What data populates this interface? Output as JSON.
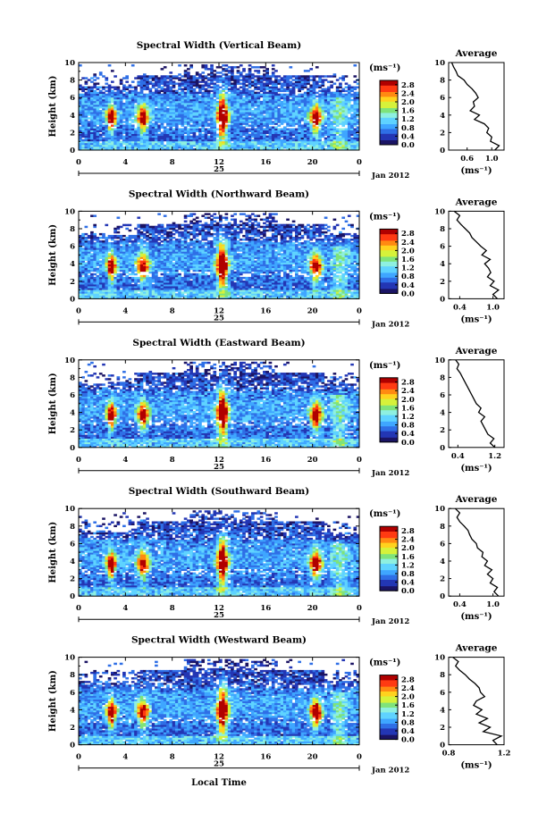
{
  "figure": {
    "xlabel": "Local Time",
    "colorscale": [
      "#1b1464",
      "#2336b4",
      "#2f6fe6",
      "#3fa6ff",
      "#5fd3ff",
      "#8ef0e0",
      "#7fe37a",
      "#d6f23a",
      "#ffd21e",
      "#ff8a12",
      "#ff3a12",
      "#b00000"
    ]
  },
  "chart_data": [
    {
      "type": "heatmap",
      "title": "Spectral Width (Vertical Beam)",
      "ylabel": "Height (km)",
      "x_ticks": [
        "0",
        "4",
        "8",
        "12",
        "16",
        "20",
        "0"
      ],
      "xlim": [
        0,
        24
      ],
      "ylim": [
        0,
        10
      ],
      "y_ticks": [
        "0",
        "2",
        "4",
        "6",
        "8",
        "10"
      ],
      "day_label": "25",
      "date_label": "Jan 2012",
      "colorbar": {
        "unit": "(ms⁻¹)",
        "ticks": [
          "0.0",
          "0.4",
          "0.8",
          "1.2",
          "1.6",
          "2.0",
          "2.4",
          "2.8"
        ],
        "range": [
          0,
          3.0
        ]
      },
      "profile": {
        "title": "Average",
        "xlabel": "(ms⁻¹)",
        "x_ticks": [
          "0.6",
          "1.0"
        ],
        "xlim": [
          0.3,
          1.2
        ],
        "height": [
          0,
          0.5,
          1,
          1.5,
          2,
          2.5,
          3,
          3.5,
          4,
          4.5,
          5,
          5.5,
          6,
          6.5,
          7,
          7.5,
          8,
          8.5,
          9,
          9.5,
          10
        ],
        "value": [
          1.05,
          1.12,
          0.98,
          1.0,
          0.92,
          0.95,
          0.88,
          0.72,
          0.8,
          0.65,
          0.72,
          0.7,
          0.78,
          0.74,
          0.68,
          0.6,
          0.55,
          0.45,
          0.42,
          0.38,
          0.35
        ]
      }
    },
    {
      "type": "heatmap",
      "title": "Spectral Width (Northward Beam)",
      "ylabel": "Height (km)",
      "x_ticks": [
        "0",
        "4",
        "8",
        "12",
        "16",
        "20",
        "0"
      ],
      "xlim": [
        0,
        24
      ],
      "ylim": [
        0,
        10
      ],
      "y_ticks": [
        "0",
        "2",
        "4",
        "6",
        "8",
        "10"
      ],
      "day_label": "25",
      "date_label": "Jan 2012",
      "colorbar": {
        "unit": "(ms⁻¹)",
        "ticks": [
          "0.0",
          "0.4",
          "0.8",
          "1.2",
          "1.6",
          "2.0",
          "2.4",
          "2.8"
        ],
        "range": [
          0,
          3.0
        ]
      },
      "profile": {
        "title": "Average",
        "xlabel": "(ms⁻¹)",
        "x_ticks": [
          "0.4",
          "1.0"
        ],
        "xlim": [
          0.2,
          1.2
        ],
        "height": [
          0,
          0.5,
          1,
          1.5,
          2,
          2.5,
          3,
          3.5,
          4,
          4.5,
          5,
          5.5,
          6,
          6.5,
          7,
          7.5,
          8,
          8.5,
          9,
          9.5,
          10
        ],
        "value": [
          1.08,
          1.0,
          1.1,
          0.95,
          1.02,
          0.9,
          0.96,
          0.92,
          0.85,
          0.95,
          0.8,
          0.88,
          0.78,
          0.7,
          0.62,
          0.58,
          0.5,
          0.42,
          0.35,
          0.4,
          0.3
        ]
      }
    },
    {
      "type": "heatmap",
      "title": "Spectral Width (Eastward Beam)",
      "ylabel": "Height (km)",
      "x_ticks": [
        "0",
        "4",
        "8",
        "12",
        "16",
        "20",
        "0"
      ],
      "xlim": [
        0,
        24
      ],
      "ylim": [
        0,
        10
      ],
      "y_ticks": [
        "0",
        "2",
        "4",
        "6",
        "8",
        "10"
      ],
      "day_label": "25",
      "date_label": "Jan 2012",
      "colorbar": {
        "unit": "(ms⁻¹)",
        "ticks": [
          "0.0",
          "0.4",
          "0.8",
          "1.2",
          "1.6",
          "2.0",
          "2.4",
          "2.8"
        ],
        "range": [
          0,
          3.0
        ]
      },
      "profile": {
        "title": "Average",
        "xlabel": "(ms⁻¹)",
        "x_ticks": [
          "0.4",
          "1.2"
        ],
        "xlim": [
          0.2,
          1.4
        ],
        "height": [
          0,
          0.5,
          1,
          1.5,
          2,
          2.5,
          3,
          3.5,
          4,
          4.5,
          5,
          5.5,
          6,
          6.5,
          7,
          7.5,
          8,
          8.5,
          9,
          9.5,
          10
        ],
        "value": [
          1.2,
          1.1,
          1.18,
          1.05,
          1.0,
          0.95,
          0.9,
          0.98,
          0.85,
          0.9,
          0.8,
          0.75,
          0.7,
          0.65,
          0.6,
          0.55,
          0.5,
          0.45,
          0.38,
          0.42,
          0.35
        ]
      }
    },
    {
      "type": "heatmap",
      "title": "Spectral Width (Southward Beam)",
      "ylabel": "Height (km)",
      "x_ticks": [
        "0",
        "4",
        "8",
        "12",
        "16",
        "20",
        "0"
      ],
      "xlim": [
        0,
        24
      ],
      "ylim": [
        0,
        10
      ],
      "y_ticks": [
        "0",
        "2",
        "4",
        "6",
        "8",
        "10"
      ],
      "day_label": "25",
      "date_label": "Jan 2012",
      "colorbar": {
        "unit": "(ms⁻¹)",
        "ticks": [
          "0.0",
          "0.4",
          "0.8",
          "1.2",
          "1.6",
          "2.0",
          "2.4",
          "2.8"
        ],
        "range": [
          0,
          3.0
        ]
      },
      "profile": {
        "title": "Average",
        "xlabel": "(ms⁻¹)",
        "x_ticks": [
          "0.4",
          "1.0"
        ],
        "xlim": [
          0.2,
          1.2
        ],
        "height": [
          0,
          0.5,
          1,
          1.5,
          2,
          2.5,
          3,
          3.5,
          4,
          4.5,
          5,
          5.5,
          6,
          6.5,
          7,
          7.5,
          8,
          8.5,
          9,
          9.5,
          10
        ],
        "value": [
          1.1,
          1.02,
          1.08,
          0.95,
          1.0,
          0.9,
          0.98,
          0.85,
          0.9,
          0.8,
          0.82,
          0.72,
          0.7,
          0.62,
          0.58,
          0.55,
          0.48,
          0.4,
          0.35,
          0.4,
          0.32
        ]
      }
    },
    {
      "type": "heatmap",
      "title": "Spectral Width (Westward Beam)",
      "ylabel": "Height (km)",
      "x_ticks": [
        "0",
        "4",
        "8",
        "12",
        "16",
        "20",
        "0"
      ],
      "xlim": [
        0,
        24
      ],
      "ylim": [
        0,
        10
      ],
      "y_ticks": [
        "0",
        "2",
        "4",
        "6",
        "8",
        "10"
      ],
      "day_label": "25",
      "date_label": "Jan 2012",
      "colorbar": {
        "unit": "(ms⁻¹)",
        "ticks": [
          "0.0",
          "0.4",
          "0.8",
          "1.2",
          "1.6",
          "2.0",
          "2.4",
          "2.8"
        ],
        "range": [
          0,
          3.0
        ]
      },
      "profile": {
        "title": "Average",
        "xlabel": "(ms⁻¹)",
        "x_ticks": [
          "0.8",
          "1.2"
        ],
        "xlim": [
          0.8,
          1.2
        ],
        "height": [
          0,
          0.5,
          1,
          1.5,
          2,
          2.5,
          3,
          3.5,
          4,
          4.5,
          5,
          5.5,
          6,
          6.5,
          7,
          7.5,
          8,
          8.5,
          9,
          9.5,
          10
        ],
        "value": [
          1.15,
          1.12,
          1.18,
          1.05,
          1.1,
          1.02,
          1.08,
          1.0,
          1.04,
          0.98,
          1.0,
          1.06,
          1.03,
          1.02,
          0.99,
          0.95,
          0.92,
          0.88,
          0.85,
          0.87,
          0.83
        ]
      }
    }
  ]
}
